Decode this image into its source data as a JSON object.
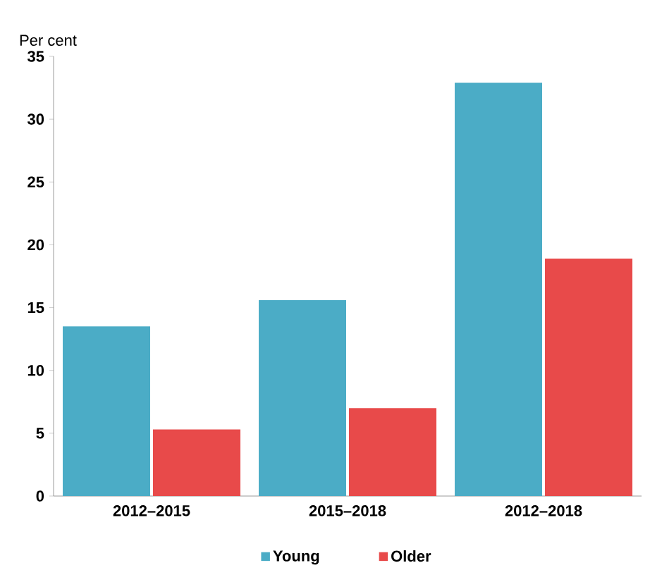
{
  "chart_data": {
    "type": "bar",
    "ylabel": "Per cent",
    "categories": [
      "2012–2015",
      "2015–2018",
      "2012–2018"
    ],
    "series": [
      {
        "name": "Young",
        "color": "#4bacc6",
        "values": [
          13.5,
          15.6,
          32.9
        ]
      },
      {
        "name": "Older",
        "color": "#e84a4a",
        "values": [
          5.3,
          7.0,
          18.9
        ]
      }
    ],
    "ylim": [
      0,
      35
    ],
    "yticks": [
      0,
      5,
      10,
      15,
      20,
      25,
      30,
      35
    ],
    "legend": "bottom",
    "grid": false
  }
}
